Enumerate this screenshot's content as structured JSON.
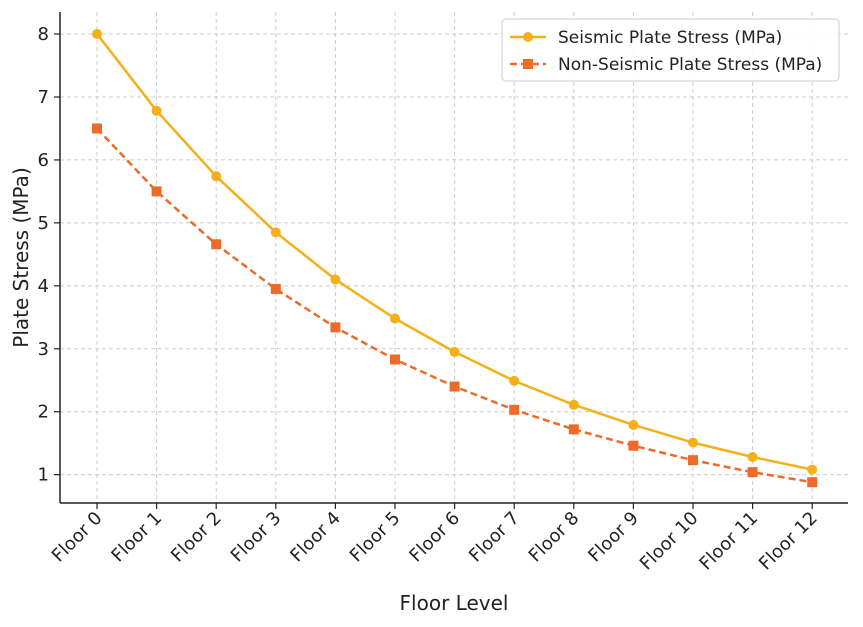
{
  "chart_data": {
    "type": "line",
    "title": "",
    "xlabel": "Floor Level",
    "ylabel": "Plate Stress (MPa)",
    "categories": [
      "Floor 0",
      "Floor 1",
      "Floor 2",
      "Floor 3",
      "Floor 4",
      "Floor 5",
      "Floor 6",
      "Floor 7",
      "Floor 8",
      "Floor 9",
      "Floor 10",
      "Floor 11",
      "Floor 12"
    ],
    "yticks": [
      1,
      2,
      3,
      4,
      5,
      6,
      7,
      8
    ],
    "ylim": [
      0.55,
      8.35
    ],
    "grid": true,
    "legend_position": "top-right",
    "series": [
      {
        "name": "Seismic Plate Stress (MPa)",
        "color": "#f5b018",
        "marker": "circle",
        "line_style": "solid",
        "values": [
          8.0,
          6.78,
          5.74,
          4.85,
          4.1,
          3.48,
          2.95,
          2.49,
          2.11,
          1.79,
          1.51,
          1.28,
          1.08
        ]
      },
      {
        "name": "Non-Seismic Plate Stress (MPa)",
        "color": "#ee6a2a",
        "marker": "square",
        "line_style": "dashed",
        "values": [
          6.5,
          5.5,
          4.66,
          3.95,
          3.34,
          2.83,
          2.4,
          2.03,
          1.72,
          1.46,
          1.23,
          1.04,
          0.88
        ]
      }
    ]
  }
}
